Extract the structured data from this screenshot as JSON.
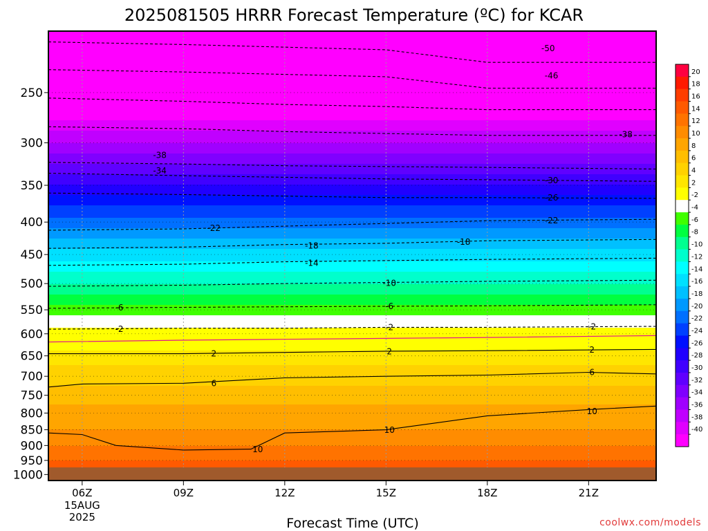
{
  "chart_data": {
    "type": "heatmap",
    "title": "2025081505 HRRR Forecast Temperature (ºC) for KCAR",
    "xlabel": "Forecast Time (UTC)",
    "ylabel": "",
    "credit": "coolwx.com/models",
    "x_ticks": [
      {
        "hour": 6,
        "label": "06Z",
        "sub": [
          "15AUG",
          "2025"
        ]
      },
      {
        "hour": 9,
        "label": "09Z"
      },
      {
        "hour": 12,
        "label": "12Z"
      },
      {
        "hour": 15,
        "label": "15Z"
      },
      {
        "hour": 18,
        "label": "18Z"
      },
      {
        "hour": 21,
        "label": "21Z"
      }
    ],
    "xlim": [
      5,
      23
    ],
    "ylim": [
      1000,
      200
    ],
    "y_scale": "log",
    "y_ticks": [
      250,
      300,
      350,
      400,
      450,
      500,
      550,
      600,
      650,
      700,
      750,
      800,
      850,
      900,
      950,
      1000
    ],
    "grid": true,
    "colorbar": {
      "levels": [
        20,
        18,
        16,
        14,
        12,
        10,
        8,
        6,
        4,
        2,
        -2,
        -4,
        -6,
        -8,
        -10,
        -12,
        -14,
        -16,
        -18,
        -20,
        -22,
        -24,
        -26,
        -28,
        -30,
        -32,
        -34,
        -36,
        -38,
        -40
      ],
      "colors": [
        "#ff0040",
        "#ff1a00",
        "#ff3d00",
        "#ff5a00",
        "#ff7300",
        "#ff8c00",
        "#ffa500",
        "#ffbe00",
        "#ffd200",
        "#ffe600",
        "#ffff00",
        "#ffffff",
        "#40ff00",
        "#00ff40",
        "#00ff90",
        "#00ffcc",
        "#00ffff",
        "#00e0ff",
        "#00c0ff",
        "#0099ff",
        "#0070ff",
        "#0040ff",
        "#0010ff",
        "#2000ff",
        "#4000ff",
        "#6000ff",
        "#8000ff",
        "#a000ff",
        "#c000ff",
        "#e000ff",
        "#ff00ff"
      ]
    },
    "temperature_profile": [
      {
        "p": 1000,
        "t": 16
      },
      {
        "p": 950,
        "t": 14
      },
      {
        "p": 900,
        "t": 12
      },
      {
        "p": 850,
        "t": 10
      },
      {
        "p": 800,
        "t": 9
      },
      {
        "p": 750,
        "t": 7
      },
      {
        "p": 700,
        "t": 5
      },
      {
        "p": 650,
        "t": 3
      },
      {
        "p": 620,
        "t": 0.5
      },
      {
        "p": 600,
        "t": -1
      },
      {
        "p": 550,
        "t": -5
      },
      {
        "p": 500,
        "t": -10
      },
      {
        "p": 450,
        "t": -15
      },
      {
        "p": 400,
        "t": -21
      },
      {
        "p": 350,
        "t": -28
      },
      {
        "p": 300,
        "t": -36
      },
      {
        "p": 250,
        "t": -45
      },
      {
        "p": 200,
        "t": -55
      }
    ],
    "contours": [
      {
        "value": -50,
        "label": "-50",
        "points": [
          [
            5,
            208
          ],
          [
            9,
            210
          ],
          [
            12,
            212
          ],
          [
            15,
            214
          ],
          [
            18,
            224
          ],
          [
            23,
            224
          ]
        ]
      },
      {
        "value": -46,
        "label": "-46",
        "points": [
          [
            5,
            230
          ],
          [
            9,
            232
          ],
          [
            12,
            234
          ],
          [
            15,
            236
          ],
          [
            18,
            246
          ],
          [
            23,
            246
          ]
        ]
      },
      {
        "value": -42,
        "label": "",
        "points": [
          [
            5,
            255
          ],
          [
            9,
            258
          ],
          [
            12,
            261
          ],
          [
            15,
            263
          ],
          [
            18,
            266
          ],
          [
            23,
            266
          ]
        ]
      },
      {
        "value": -38,
        "label": "-38",
        "points": [
          [
            5,
            283
          ],
          [
            9,
            285
          ],
          [
            12,
            288
          ],
          [
            15,
            290
          ],
          [
            18,
            292
          ],
          [
            23,
            292
          ]
        ]
      },
      {
        "value": -34,
        "label": "-34",
        "points": [
          [
            5,
            322
          ],
          [
            9,
            324
          ],
          [
            12,
            326
          ],
          [
            15,
            327
          ],
          [
            18,
            328
          ],
          [
            23,
            330
          ]
        ]
      },
      {
        "value": -30,
        "label": "-30",
        "points": [
          [
            5,
            335
          ],
          [
            9,
            338
          ],
          [
            12,
            340
          ],
          [
            15,
            342
          ],
          [
            18,
            343
          ],
          [
            23,
            345
          ]
        ]
      },
      {
        "value": -26,
        "label": "-26",
        "points": [
          [
            5,
            360
          ],
          [
            9,
            362
          ],
          [
            12,
            364
          ],
          [
            15,
            366
          ],
          [
            18,
            366
          ],
          [
            23,
            367
          ]
        ]
      },
      {
        "value": -22,
        "label": "-22",
        "points": [
          [
            5,
            412
          ],
          [
            9,
            410
          ],
          [
            12,
            406
          ],
          [
            15,
            402
          ],
          [
            18,
            398
          ],
          [
            23,
            396
          ]
        ]
      },
      {
        "value": -18,
        "label": "-18",
        "points": [
          [
            5,
            440
          ],
          [
            9,
            438
          ],
          [
            12,
            434
          ],
          [
            15,
            432
          ],
          [
            18,
            428
          ],
          [
            23,
            426
          ]
        ]
      },
      {
        "value": -14,
        "label": "-14",
        "points": [
          [
            5,
            468
          ],
          [
            9,
            466
          ],
          [
            12,
            462
          ],
          [
            15,
            460
          ],
          [
            18,
            458
          ],
          [
            23,
            456
          ]
        ]
      },
      {
        "value": -10,
        "label": "-10",
        "points": [
          [
            5,
            505
          ],
          [
            9,
            503
          ],
          [
            12,
            500
          ],
          [
            15,
            498
          ],
          [
            18,
            496
          ],
          [
            23,
            494
          ]
        ]
      },
      {
        "value": -6,
        "label": "-6",
        "points": [
          [
            5,
            547
          ],
          [
            9,
            545
          ],
          [
            12,
            544
          ],
          [
            15,
            543
          ],
          [
            18,
            542
          ],
          [
            23,
            540
          ]
        ]
      },
      {
        "value": -2,
        "label": "-2",
        "points": [
          [
            5,
            590
          ],
          [
            9,
            588
          ],
          [
            12,
            588
          ],
          [
            15,
            586
          ],
          [
            18,
            586
          ],
          [
            23,
            584
          ]
        ]
      },
      {
        "value": 2,
        "label": "2",
        "points": [
          [
            5,
            645
          ],
          [
            9,
            645
          ],
          [
            12,
            642
          ],
          [
            15,
            639
          ],
          [
            18,
            638
          ],
          [
            23,
            635
          ]
        ]
      },
      {
        "value": 6,
        "label": "6",
        "points": [
          [
            5,
            728
          ],
          [
            6,
            720
          ],
          [
            9,
            718
          ],
          [
            12,
            704
          ],
          [
            15,
            700
          ],
          [
            18,
            697
          ],
          [
            21,
            690
          ],
          [
            23,
            694
          ]
        ]
      },
      {
        "value": 10,
        "label": "10",
        "points": [
          [
            5,
            860
          ],
          [
            6,
            865
          ],
          [
            7,
            900
          ],
          [
            9,
            915
          ],
          [
            11,
            912
          ],
          [
            12,
            860
          ],
          [
            15,
            850
          ],
          [
            18,
            808
          ],
          [
            21,
            790
          ],
          [
            23,
            780
          ]
        ]
      }
    ],
    "freezing_line": {
      "value": 0,
      "points": [
        [
          5,
          618
        ],
        [
          9,
          614
        ],
        [
          12,
          612
        ],
        [
          15,
          610
        ],
        [
          18,
          608
        ],
        [
          23,
          604
        ]
      ]
    },
    "contour_labels": [
      {
        "text": "-50",
        "x": 19.8,
        "p": 213
      },
      {
        "text": "-46",
        "x": 19.9,
        "p": 235
      },
      {
        "text": "-38",
        "x": 8.3,
        "p": 314
      },
      {
        "text": "-38",
        "x": 22.1,
        "p": 291
      },
      {
        "text": "-34",
        "x": 8.3,
        "p": 332
      },
      {
        "text": "-30",
        "x": 19.9,
        "p": 344
      },
      {
        "text": "-26",
        "x": 19.9,
        "p": 366
      },
      {
        "text": "-22",
        "x": 9.9,
        "p": 409
      },
      {
        "text": "-22",
        "x": 19.9,
        "p": 398
      },
      {
        "text": "-18",
        "x": 12.8,
        "p": 436
      },
      {
        "text": "-18",
        "x": 17.3,
        "p": 430
      },
      {
        "text": "-14",
        "x": 12.8,
        "p": 464
      },
      {
        "text": "-10",
        "x": 15.1,
        "p": 499
      },
      {
        "text": "-6",
        "x": 7.1,
        "p": 546
      },
      {
        "text": "-6",
        "x": 15.1,
        "p": 543
      },
      {
        "text": "-2",
        "x": 7.1,
        "p": 590
      },
      {
        "text": "-2",
        "x": 15.1,
        "p": 586
      },
      {
        "text": "-2",
        "x": 21.1,
        "p": 585
      },
      {
        "text": "2",
        "x": 9.9,
        "p": 645
      },
      {
        "text": "2",
        "x": 15.1,
        "p": 640
      },
      {
        "text": "2",
        "x": 21.1,
        "p": 636
      },
      {
        "text": "6",
        "x": 9.9,
        "p": 718
      },
      {
        "text": "6",
        "x": 21.1,
        "p": 690
      },
      {
        "text": "10",
        "x": 11.2,
        "p": 913
      },
      {
        "text": "10",
        "x": 15.1,
        "p": 851
      },
      {
        "text": "10",
        "x": 21.1,
        "p": 795
      }
    ]
  }
}
